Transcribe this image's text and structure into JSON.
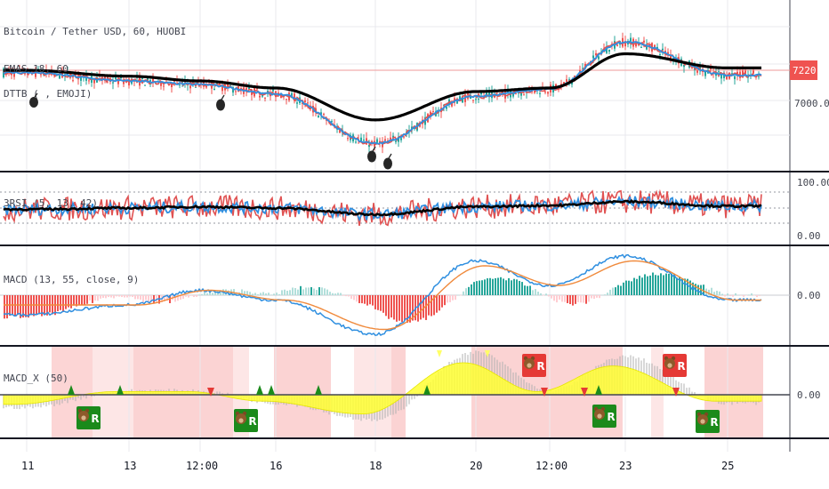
{
  "panes": {
    "price": {
      "title": "Bitcoin / Tether USD, 60, HUOBI",
      "ema_label": "EMAS 18, 60",
      "dttb_label": "DTTB (  , EMOJI)",
      "bomb_icon": "bomb-icon",
      "price_tag": "7220.14",
      "tag_color": "#ef5350",
      "y_ticks": [
        "7000.00"
      ]
    },
    "rsi": {
      "title": "3RSI (5, 13, 42)",
      "y_ticks": [
        "100.00",
        "0.00"
      ]
    },
    "macd": {
      "title": "MACD (13, 55, close, 9)",
      "y_ticks": [
        "0.00"
      ]
    },
    "macdx": {
      "title": "MACD_X (50)",
      "y_ticks": [
        "0.00"
      ],
      "bull_marker": "R",
      "bear_marker": "R",
      "bull_color": "#1b8a1b",
      "bear_color": "#e53935",
      "animal_icon": "bear-icon"
    }
  },
  "x_axis": {
    "labels": [
      "11",
      "13",
      "12:00",
      "16",
      "18",
      "20",
      "12:00",
      "23",
      "25"
    ]
  },
  "chart_data": [
    {
      "type": "line",
      "pane": "price",
      "title": "Bitcoin / Tether USD, 60, HUOBI",
      "x": [
        "11",
        "13",
        "12:00",
        "16",
        "18",
        "20",
        "12:00",
        "23",
        "25"
      ],
      "series": [
        {
          "name": "EMAS 18, 60",
          "values": [
            7260,
            7235,
            7215,
            7185,
            7050,
            7170,
            7185,
            7330,
            7270
          ]
        },
        {
          "values": [
            7250,
            7215,
            7200,
            7160,
            6950,
            7150,
            7180,
            7380,
            7240
          ]
        }
      ],
      "last_price": 7220.14,
      "y_ticks": [
        7000.0
      ]
    },
    {
      "type": "line",
      "pane": "rsi",
      "title": "3RSI (5, 13, 42)",
      "x": [
        "11",
        "13",
        "12:00",
        "16",
        "18",
        "20",
        "12:00",
        "23",
        "25"
      ],
      "series": [
        {
          "values": [
            48,
            50,
            52,
            50,
            40,
            52,
            54,
            60,
            53
          ]
        }
      ],
      "ylim": [
        0,
        100
      ],
      "y_ticks": [
        100.0,
        0.0
      ]
    },
    {
      "type": "line",
      "pane": "macd",
      "title": "MACD (13, 55, close, 9)",
      "x": [
        "11",
        "13",
        "12:00",
        "16",
        "18",
        "20",
        "12:00",
        "23",
        "25"
      ],
      "series": [
        {
          "values": [
            -2,
            -1,
            0.5,
            -0.5,
            -4,
            3.5,
            1,
            4,
            -0.5
          ]
        },
        {
          "values": [
            -1,
            -1,
            0.5,
            -0.5,
            -3.5,
            3,
            1,
            3.5,
            -0.5
          ]
        }
      ],
      "y_ticks": [
        0.0
      ]
    },
    {
      "type": "area",
      "pane": "macdx",
      "title": "MACD_X (50)",
      "x": [
        "11",
        "13",
        "12:00",
        "16",
        "18",
        "20",
        "12:00",
        "23",
        "25"
      ],
      "series": [
        {
          "values": [
            -0.3,
            0.1,
            0.1,
            -0.2,
            -0.6,
            1.0,
            0.1,
            0.9,
            -0.2
          ]
        }
      ],
      "y_ticks": [
        0.0
      ]
    }
  ]
}
